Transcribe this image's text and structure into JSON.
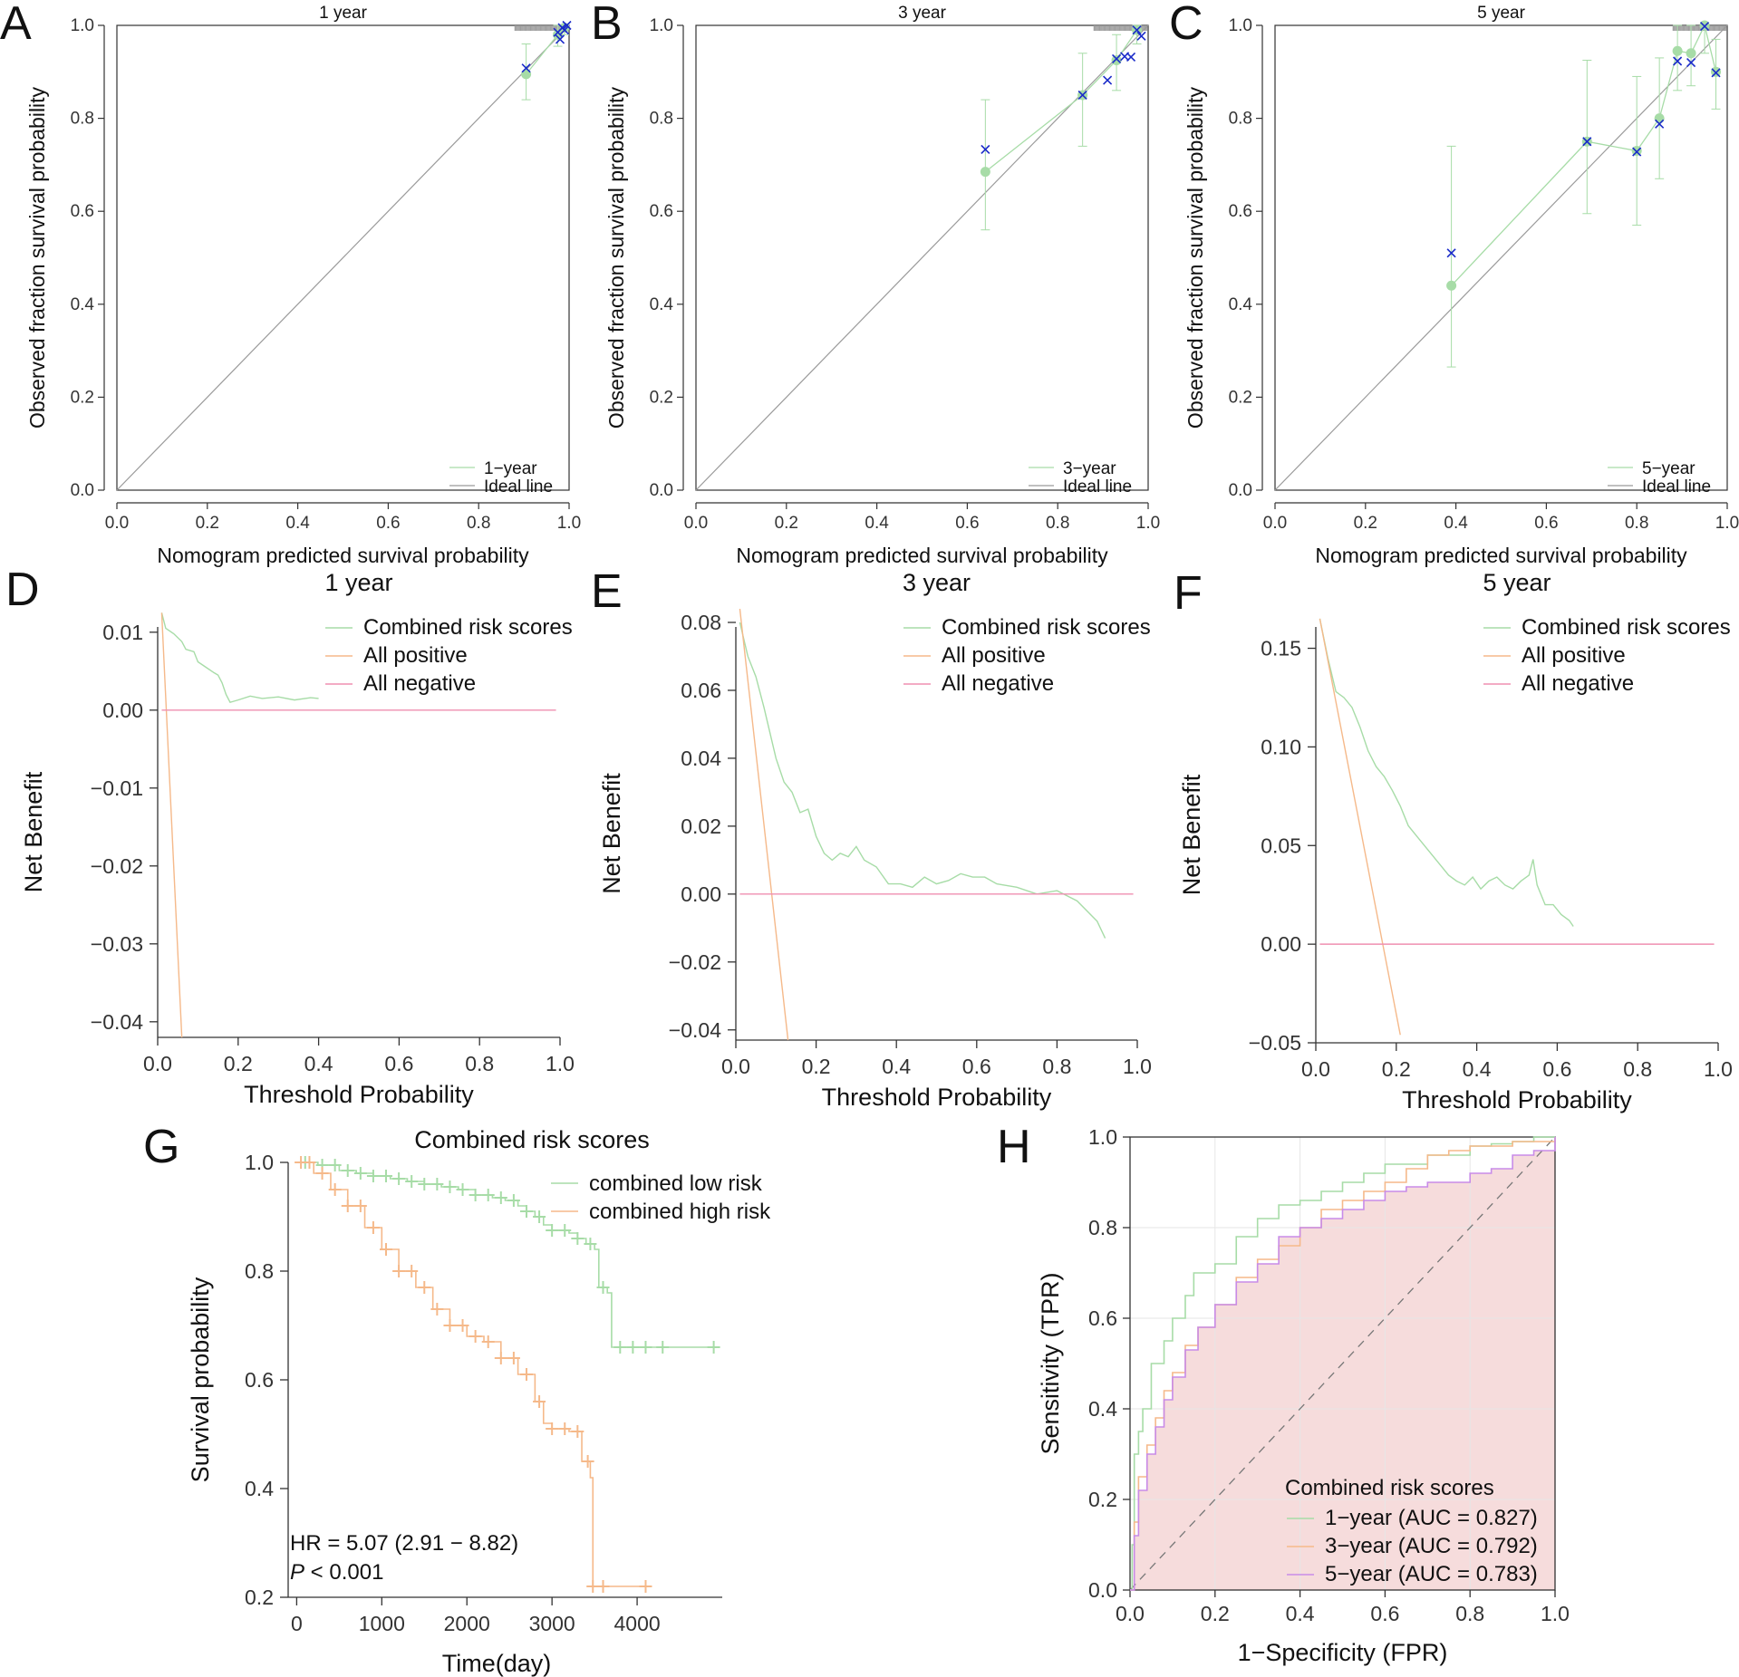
{
  "figure": {
    "panel_letters": [
      "A",
      "B",
      "C",
      "D",
      "E",
      "F",
      "G",
      "H"
    ]
  },
  "colors": {
    "green": "#a7dca7",
    "orange": "#f5b98a",
    "pink": "#ef8fb1",
    "blue": "#1a2bc9",
    "gray": "#9a9a9a",
    "axis": "#333333",
    "roc_fill": "#f6dcdc",
    "roc5": "#c88be8",
    "dashed": "#777777"
  },
  "chart_data": [
    {
      "id": "A",
      "type": "scatter",
      "title": "1 year",
      "xlabel": "Nomogram predicted survival probability",
      "ylabel": "Observed fraction survival probability",
      "xlim": [
        0,
        1
      ],
      "ylim": [
        0,
        1
      ],
      "xticks": [
        "0.0",
        "0.2",
        "0.4",
        "0.6",
        "0.8",
        "1.0"
      ],
      "yticks": [
        "0.0",
        "0.2",
        "0.4",
        "0.6",
        "0.8",
        "1.0"
      ],
      "legend": [
        "1−year",
        "Ideal line"
      ],
      "observed": [
        {
          "x": 0.905,
          "y": 0.895,
          "lo": 0.84,
          "hi": 0.96
        },
        {
          "x": 0.975,
          "y": 0.98,
          "lo": 0.955,
          "hi": 1.0
        },
        {
          "x": 0.99,
          "y": 0.995,
          "lo": 0.98,
          "hi": 1.0
        }
      ],
      "corrected": [
        {
          "x": 0.905,
          "y": 0.908
        },
        {
          "x": 0.975,
          "y": 0.985
        },
        {
          "x": 0.98,
          "y": 0.97
        },
        {
          "x": 0.985,
          "y": 0.995
        },
        {
          "x": 0.99,
          "y": 0.99
        },
        {
          "x": 0.995,
          "y": 1.0
        }
      ]
    },
    {
      "id": "B",
      "type": "scatter",
      "title": "3 year",
      "xlabel": "Nomogram predicted survival probability",
      "ylabel": "Observed fraction survival probability",
      "xlim": [
        0,
        1
      ],
      "ylim": [
        0,
        1
      ],
      "xticks": [
        "0.0",
        "0.2",
        "0.4",
        "0.6",
        "0.8",
        "1.0"
      ],
      "yticks": [
        "0.0",
        "0.2",
        "0.4",
        "0.6",
        "0.8",
        "1.0"
      ],
      "legend": [
        "3−year",
        "Ideal line"
      ],
      "observed": [
        {
          "x": 0.64,
          "y": 0.685,
          "lo": 0.56,
          "hi": 0.84
        },
        {
          "x": 0.855,
          "y": 0.85,
          "lo": 0.74,
          "hi": 0.94
        },
        {
          "x": 0.93,
          "y": 0.925,
          "lo": 0.86,
          "hi": 0.98
        },
        {
          "x": 0.975,
          "y": 0.99,
          "lo": 0.96,
          "hi": 1.0
        }
      ],
      "corrected": [
        {
          "x": 0.64,
          "y": 0.733
        },
        {
          "x": 0.855,
          "y": 0.85
        },
        {
          "x": 0.91,
          "y": 0.882
        },
        {
          "x": 0.93,
          "y": 0.928
        },
        {
          "x": 0.948,
          "y": 0.933
        },
        {
          "x": 0.962,
          "y": 0.932
        },
        {
          "x": 0.975,
          "y": 0.99
        },
        {
          "x": 0.985,
          "y": 0.977
        }
      ]
    },
    {
      "id": "C",
      "type": "scatter",
      "title": "5 year",
      "xlabel": "Nomogram predicted survival probability",
      "ylabel": "Observed fraction survival probability",
      "xlim": [
        0,
        1
      ],
      "ylim": [
        0,
        1
      ],
      "xticks": [
        "0.0",
        "0.2",
        "0.4",
        "0.6",
        "0.8",
        "1.0"
      ],
      "yticks": [
        "0.0",
        "0.2",
        "0.4",
        "0.6",
        "0.8",
        "1.0"
      ],
      "legend": [
        "5−year",
        "Ideal line"
      ],
      "observed": [
        {
          "x": 0.39,
          "y": 0.44,
          "lo": 0.265,
          "hi": 0.74
        },
        {
          "x": 0.69,
          "y": 0.75,
          "lo": 0.595,
          "hi": 0.925
        },
        {
          "x": 0.8,
          "y": 0.73,
          "lo": 0.57,
          "hi": 0.89
        },
        {
          "x": 0.85,
          "y": 0.8,
          "lo": 0.67,
          "hi": 0.93
        },
        {
          "x": 0.89,
          "y": 0.945,
          "lo": 0.86,
          "hi": 1.0
        },
        {
          "x": 0.92,
          "y": 0.94,
          "lo": 0.87,
          "hi": 1.0
        },
        {
          "x": 0.95,
          "y": 1.0,
          "lo": 0.94,
          "hi": 1.0
        },
        {
          "x": 0.975,
          "y": 0.9,
          "lo": 0.82,
          "hi": 0.97
        }
      ],
      "corrected": [
        {
          "x": 0.39,
          "y": 0.51
        },
        {
          "x": 0.69,
          "y": 0.75
        },
        {
          "x": 0.8,
          "y": 0.728
        },
        {
          "x": 0.85,
          "y": 0.788
        },
        {
          "x": 0.89,
          "y": 0.923
        },
        {
          "x": 0.92,
          "y": 0.92
        },
        {
          "x": 0.95,
          "y": 0.998
        },
        {
          "x": 0.975,
          "y": 0.898
        }
      ]
    },
    {
      "id": "D",
      "type": "line",
      "title": "1 year",
      "xlabel": "Threshold Probability",
      "ylabel": "Net Benefit",
      "xlim": [
        0,
        1
      ],
      "ylim": [
        -0.042,
        0.013
      ],
      "xticks": [
        0,
        0.2,
        0.4,
        0.6,
        0.8,
        1.0
      ],
      "yticks": [
        -0.04,
        -0.03,
        -0.02,
        -0.01,
        0.0,
        0.01
      ],
      "ytick_labels": [
        "−0.04",
        "−0.03",
        "−0.02",
        "−0.01",
        "0.00",
        "0.01"
      ],
      "legend": [
        "Combined risk scores",
        "All positive",
        "All negative"
      ],
      "series": [
        {
          "name": "Combined risk scores",
          "x": [
            0.01,
            0.02,
            0.04,
            0.06,
            0.07,
            0.09,
            0.1,
            0.12,
            0.14,
            0.15,
            0.16,
            0.17,
            0.18,
            0.2,
            0.23,
            0.26,
            0.3,
            0.34,
            0.38,
            0.4
          ],
          "y": [
            0.0125,
            0.0105,
            0.0098,
            0.0088,
            0.0078,
            0.0075,
            0.0062,
            0.0055,
            0.0048,
            0.0045,
            0.0035,
            0.002,
            0.001,
            0.0013,
            0.0018,
            0.0015,
            0.0017,
            0.0013,
            0.0016,
            0.0015
          ]
        },
        {
          "name": "All positive",
          "x": [
            0.01,
            0.06
          ],
          "y": [
            0.0125,
            -0.042
          ]
        },
        {
          "name": "All negative",
          "x": [
            0.01,
            0.99
          ],
          "y": [
            0,
            0
          ]
        }
      ]
    },
    {
      "id": "E",
      "type": "line",
      "title": "3 year",
      "xlabel": "Threshold Probability",
      "ylabel": "Net Benefit",
      "xlim": [
        0,
        1
      ],
      "ylim": [
        -0.043,
        0.084
      ],
      "xticks": [
        0,
        0.2,
        0.4,
        0.6,
        0.8,
        1.0
      ],
      "yticks": [
        -0.04,
        -0.02,
        0.0,
        0.02,
        0.04,
        0.06,
        0.08
      ],
      "ytick_labels": [
        "−0.04",
        "−0.02",
        "0.00",
        "0.02",
        "0.04",
        "0.06",
        "0.08"
      ],
      "legend": [
        "Combined risk scores",
        "All positive",
        "All negative"
      ],
      "series": [
        {
          "name": "Combined risk scores",
          "x": [
            0.01,
            0.03,
            0.05,
            0.07,
            0.09,
            0.1,
            0.12,
            0.14,
            0.16,
            0.18,
            0.2,
            0.22,
            0.24,
            0.26,
            0.28,
            0.3,
            0.32,
            0.35,
            0.38,
            0.41,
            0.44,
            0.47,
            0.5,
            0.53,
            0.56,
            0.59,
            0.62,
            0.65,
            0.7,
            0.75,
            0.8,
            0.85,
            0.9,
            0.92
          ],
          "y": [
            0.08,
            0.07,
            0.064,
            0.055,
            0.045,
            0.04,
            0.033,
            0.03,
            0.024,
            0.025,
            0.017,
            0.012,
            0.01,
            0.012,
            0.011,
            0.014,
            0.01,
            0.008,
            0.003,
            0.003,
            0.002,
            0.005,
            0.003,
            0.004,
            0.006,
            0.005,
            0.005,
            0.003,
            0.002,
            0.0,
            0.001,
            -0.002,
            -0.008,
            -0.013
          ]
        },
        {
          "name": "All positive",
          "x": [
            0.01,
            0.13
          ],
          "y": [
            0.084,
            -0.043
          ]
        },
        {
          "name": "All negative",
          "x": [
            0.01,
            0.99
          ],
          "y": [
            0,
            0
          ]
        }
      ]
    },
    {
      "id": "F",
      "type": "line",
      "title": "5 year",
      "xlabel": "Threshold Probability",
      "ylabel": "Net Benefit",
      "xlim": [
        0,
        1
      ],
      "ylim": [
        -0.05,
        0.17
      ],
      "xticks": [
        0,
        0.2,
        0.4,
        0.6,
        0.8,
        1.0
      ],
      "yticks": [
        -0.05,
        0.0,
        0.05,
        0.1,
        0.15
      ],
      "ytick_labels": [
        "−0.05",
        "0.00",
        "0.05",
        "0.10",
        "0.15"
      ],
      "legend": [
        "Combined risk scores",
        "All positive",
        "All negative"
      ],
      "series": [
        {
          "name": "Combined risk scores",
          "x": [
            0.01,
            0.03,
            0.05,
            0.07,
            0.09,
            0.11,
            0.13,
            0.15,
            0.17,
            0.19,
            0.21,
            0.23,
            0.25,
            0.27,
            0.29,
            0.31,
            0.33,
            0.35,
            0.37,
            0.39,
            0.41,
            0.43,
            0.45,
            0.47,
            0.49,
            0.51,
            0.53,
            0.54,
            0.55,
            0.57,
            0.59,
            0.61,
            0.63,
            0.64
          ],
          "y": [
            0.165,
            0.145,
            0.128,
            0.125,
            0.12,
            0.11,
            0.098,
            0.09,
            0.085,
            0.078,
            0.07,
            0.06,
            0.055,
            0.05,
            0.045,
            0.04,
            0.035,
            0.032,
            0.03,
            0.034,
            0.028,
            0.032,
            0.034,
            0.03,
            0.028,
            0.032,
            0.035,
            0.043,
            0.03,
            0.02,
            0.02,
            0.015,
            0.012,
            0.009
          ]
        },
        {
          "name": "All positive",
          "x": [
            0.01,
            0.21
          ],
          "y": [
            0.165,
            -0.046
          ]
        },
        {
          "name": "All negative",
          "x": [
            0.01,
            0.99
          ],
          "y": [
            0,
            0
          ]
        }
      ]
    },
    {
      "id": "G",
      "type": "line",
      "subtype": "kaplan-meier",
      "title": "Combined risk scores",
      "xlabel": "Time(day)",
      "ylabel": "Survival probability",
      "xlim": [
        -100,
        5000
      ],
      "ylim": [
        0.2,
        1.0
      ],
      "xticks": [
        0,
        1000,
        2000,
        3000,
        4000
      ],
      "yticks": [
        0.2,
        0.4,
        0.6,
        0.8,
        1.0
      ],
      "ytick_labels": [
        "0.2",
        "0.4",
        "0.6",
        "0.8",
        "1.0"
      ],
      "legend": [
        "combined low risk",
        "combined high risk"
      ],
      "annotation": {
        "hr": "HR = 5.07 (2.91 − 8.82)",
        "p_italic": "P",
        "p_rest": " < 0.001"
      },
      "series": [
        {
          "name": "combined low risk",
          "x": [
            0,
            250,
            500,
            700,
            900,
            1100,
            1300,
            1500,
            1700,
            1900,
            2100,
            2300,
            2450,
            2600,
            2700,
            2800,
            2900,
            3000,
            3200,
            3300,
            3400,
            3500,
            3550,
            3650,
            3700,
            4900
          ],
          "y": [
            1.0,
            0.995,
            0.985,
            0.98,
            0.975,
            0.97,
            0.965,
            0.96,
            0.955,
            0.95,
            0.94,
            0.935,
            0.93,
            0.92,
            0.91,
            0.9,
            0.885,
            0.875,
            0.87,
            0.86,
            0.85,
            0.84,
            0.77,
            0.76,
            0.66,
            0.66
          ],
          "censor_x": [
            100,
            300,
            450,
            600,
            750,
            900,
            1050,
            1200,
            1350,
            1500,
            1650,
            1800,
            1950,
            2100,
            2250,
            2400,
            2550,
            2700,
            2850,
            3000,
            3150,
            3300,
            3450,
            3600,
            3800,
            3950,
            4100,
            4300,
            4900
          ]
        },
        {
          "name": "combined high risk",
          "x": [
            0,
            200,
            400,
            600,
            800,
            1000,
            1200,
            1400,
            1600,
            1800,
            2000,
            2200,
            2400,
            2600,
            2800,
            2900,
            3000,
            3200,
            3350,
            3450,
            3480,
            4100
          ],
          "y": [
            1.0,
            0.98,
            0.95,
            0.92,
            0.88,
            0.84,
            0.8,
            0.77,
            0.73,
            0.7,
            0.68,
            0.67,
            0.64,
            0.61,
            0.56,
            0.52,
            0.51,
            0.505,
            0.45,
            0.42,
            0.22,
            0.22
          ],
          "censor_x": [
            50,
            150,
            300,
            450,
            600,
            750,
            900,
            1050,
            1200,
            1350,
            1500,
            1650,
            1800,
            1950,
            2100,
            2250,
            2400,
            2550,
            2700,
            2850,
            3000,
            3150,
            3300,
            3420,
            3480,
            3600,
            4100
          ]
        }
      ]
    },
    {
      "id": "H",
      "type": "line",
      "subtype": "roc",
      "title": "",
      "xlabel": "1−Specificity (FPR)",
      "ylabel": "Sensitivity (TPR)",
      "xlim": [
        0,
        1
      ],
      "ylim": [
        0,
        1
      ],
      "xticks": [
        "0.0",
        "0.2",
        "0.4",
        "0.6",
        "0.8",
        "1.0"
      ],
      "yticks": [
        "0.0",
        "0.2",
        "0.4",
        "0.6",
        "0.8",
        "1.0"
      ],
      "legend_title": "Combined risk scores",
      "legend": [
        "1−year (AUC = 0.827)",
        "3−year (AUC = 0.792)",
        "5−year (AUC = 0.783)"
      ],
      "series": [
        {
          "name": "1−year (AUC = 0.827)",
          "x": [
            0,
            0.005,
            0.01,
            0.02,
            0.03,
            0.05,
            0.08,
            0.1,
            0.13,
            0.15,
            0.2,
            0.25,
            0.3,
            0.35,
            0.4,
            0.45,
            0.5,
            0.55,
            0.6,
            0.7,
            0.8,
            0.85,
            0.9,
            0.95,
            1.0
          ],
          "y": [
            0,
            0.1,
            0.3,
            0.35,
            0.4,
            0.5,
            0.55,
            0.6,
            0.65,
            0.7,
            0.72,
            0.78,
            0.82,
            0.85,
            0.86,
            0.88,
            0.9,
            0.92,
            0.94,
            0.96,
            0.98,
            0.985,
            0.99,
            1.0,
            1.0
          ]
        },
        {
          "name": "3−year (AUC = 0.792)",
          "x": [
            0,
            0.01,
            0.02,
            0.04,
            0.06,
            0.08,
            0.1,
            0.13,
            0.16,
            0.2,
            0.25,
            0.3,
            0.35,
            0.4,
            0.45,
            0.5,
            0.55,
            0.6,
            0.65,
            0.7,
            0.75,
            0.8,
            0.9,
            1.0
          ],
          "y": [
            0,
            0.15,
            0.25,
            0.32,
            0.38,
            0.44,
            0.48,
            0.54,
            0.58,
            0.63,
            0.69,
            0.73,
            0.76,
            0.8,
            0.84,
            0.86,
            0.88,
            0.9,
            0.93,
            0.96,
            0.97,
            0.98,
            0.99,
            1.0
          ]
        },
        {
          "name": "5−year (AUC = 0.783)",
          "x": [
            0,
            0.01,
            0.02,
            0.04,
            0.06,
            0.08,
            0.1,
            0.13,
            0.16,
            0.2,
            0.25,
            0.3,
            0.35,
            0.4,
            0.45,
            0.5,
            0.55,
            0.6,
            0.65,
            0.7,
            0.8,
            0.85,
            0.9,
            0.95,
            1.0
          ],
          "y": [
            0,
            0.12,
            0.22,
            0.3,
            0.36,
            0.42,
            0.47,
            0.53,
            0.58,
            0.63,
            0.68,
            0.72,
            0.78,
            0.8,
            0.82,
            0.84,
            0.86,
            0.88,
            0.89,
            0.9,
            0.92,
            0.93,
            0.96,
            0.97,
            1.0
          ]
        }
      ]
    }
  ]
}
